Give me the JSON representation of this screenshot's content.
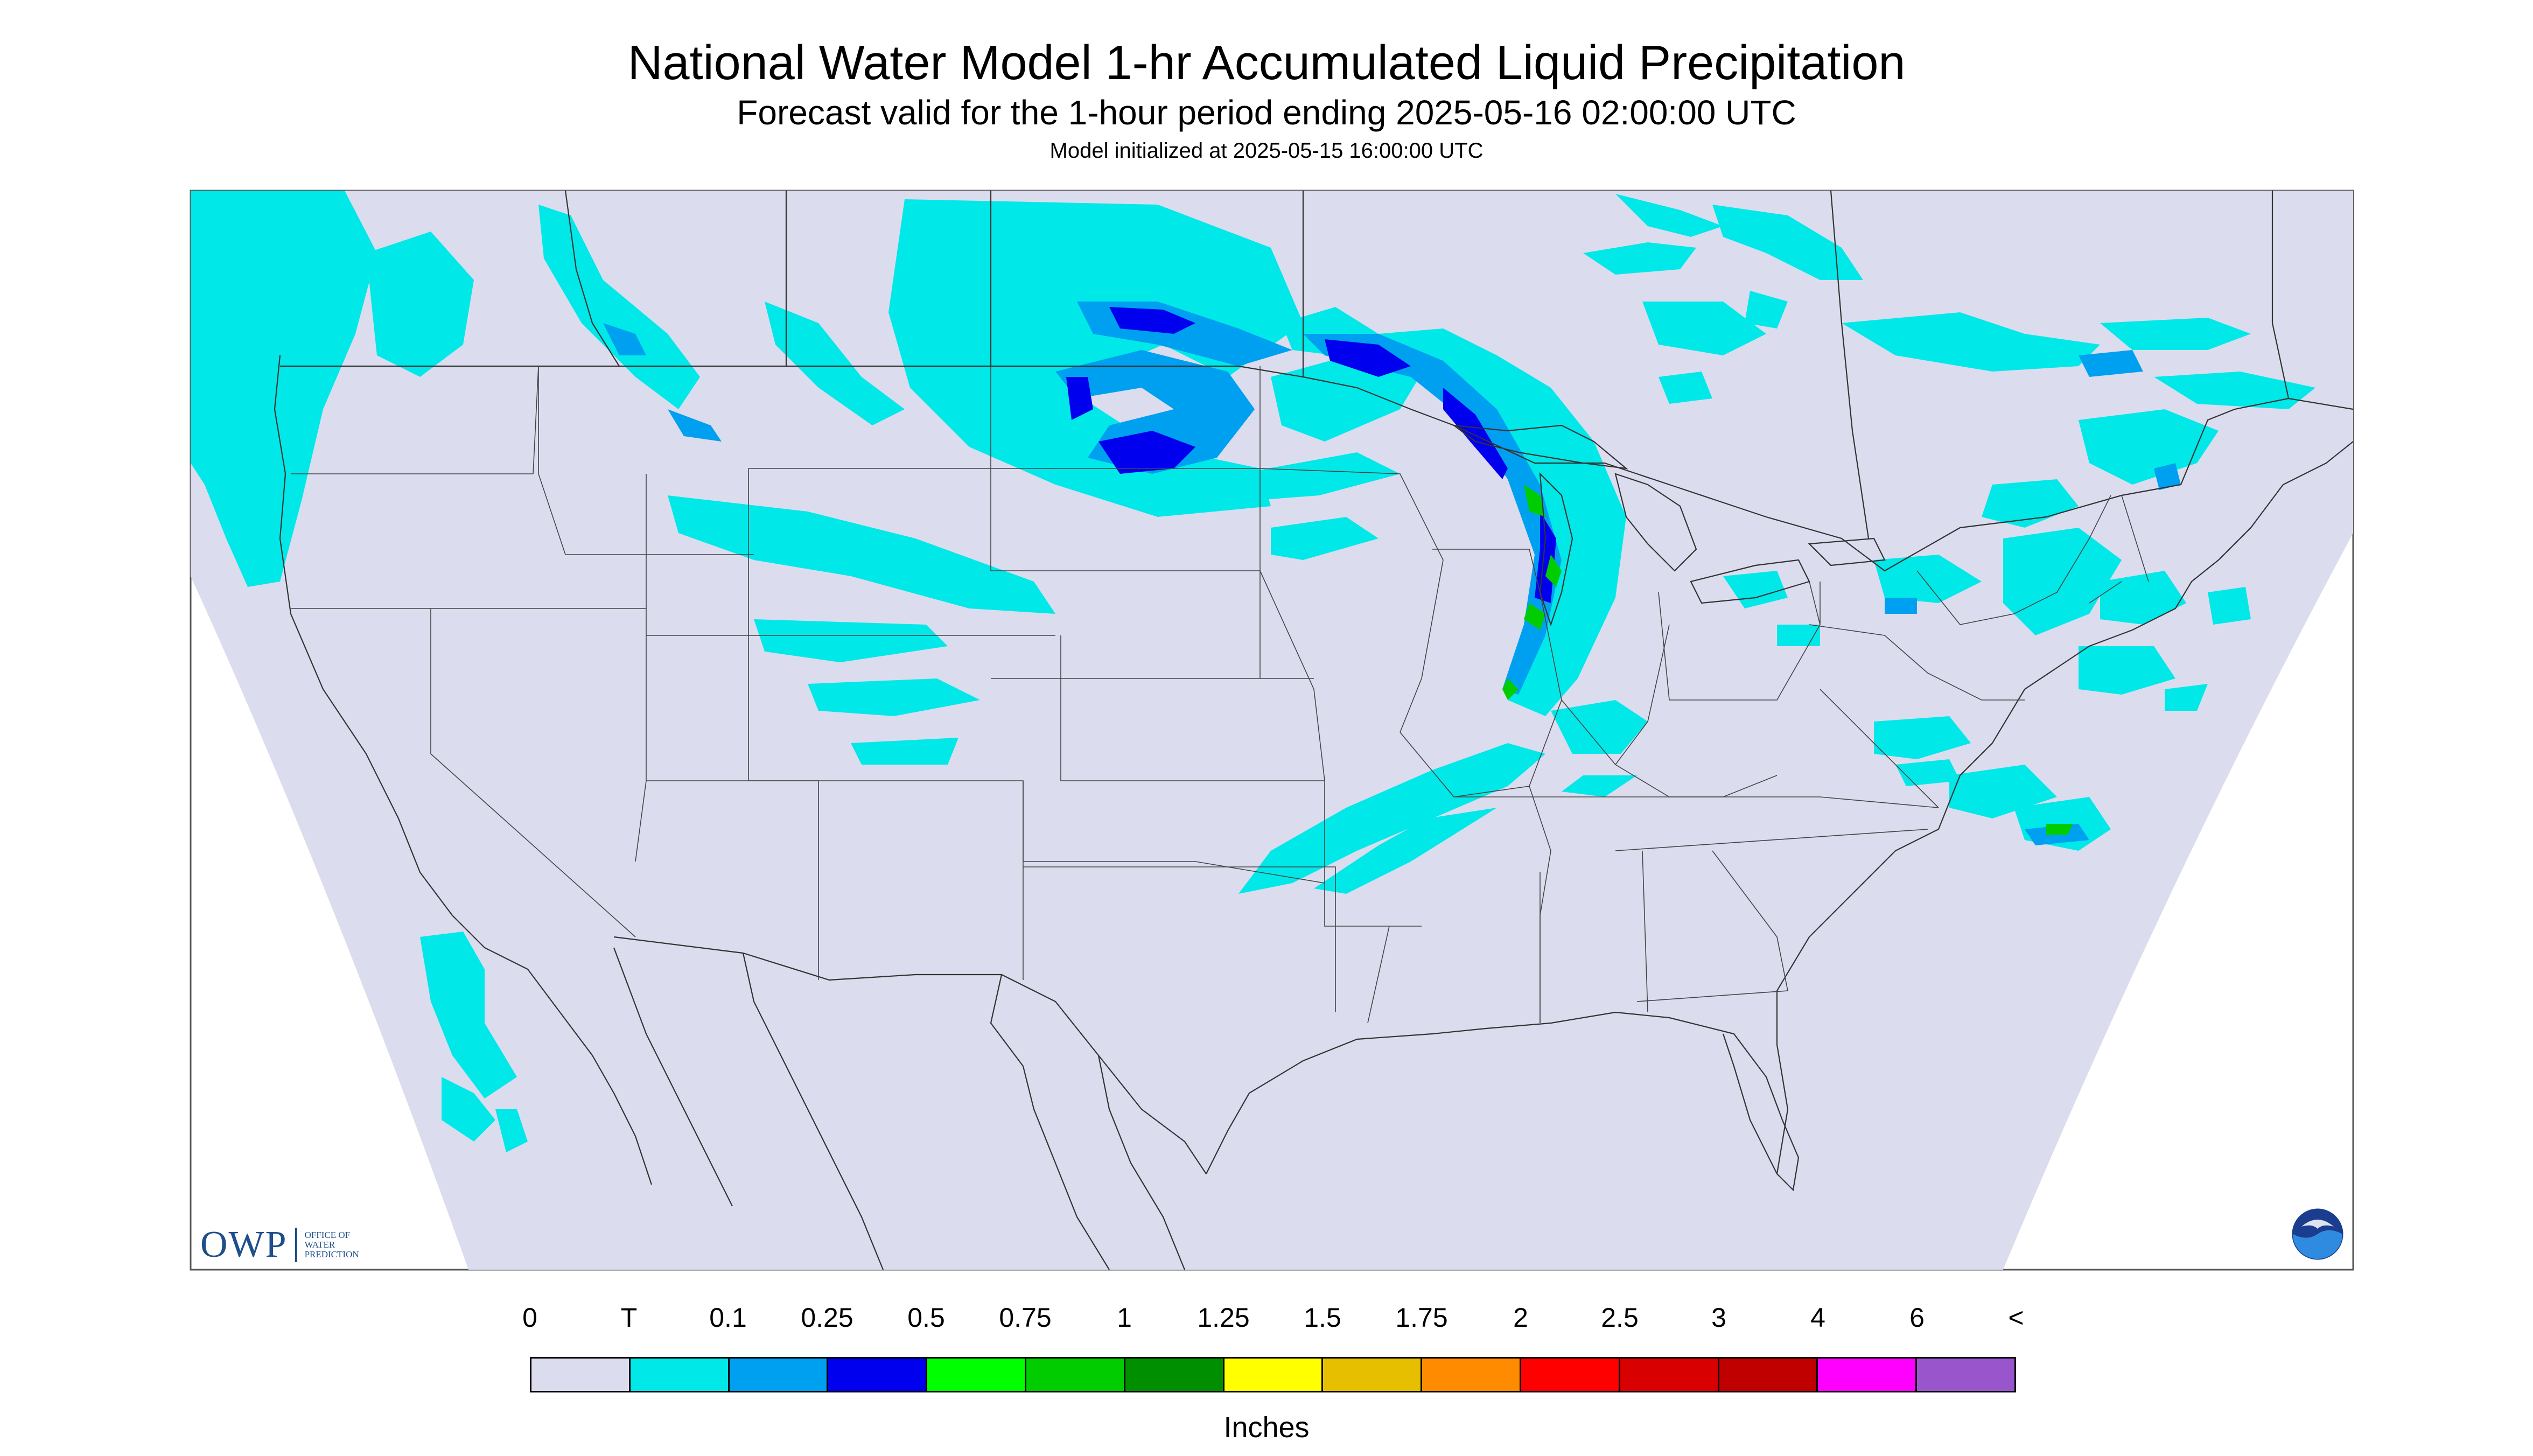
{
  "title": "National Water Model 1-hr Accumulated Liquid Precipitation",
  "subtitle": "Forecast valid for the 1-hour period ending 2025-05-16 02:00:00 UTC",
  "init_line": "Model initialized at 2025-05-15 16:00:00 UTC",
  "logos": {
    "owp_mark": "OWP",
    "owp_text_lines": [
      "OFFICE OF",
      "WATER",
      "PREDICTION"
    ],
    "noaa": "NOAA"
  },
  "legend": {
    "units": "Inches",
    "labels": [
      "0",
      "T",
      "0.1",
      "0.25",
      "0.5",
      "0.75",
      "1",
      "1.25",
      "1.5",
      "1.75",
      "2",
      "2.5",
      "3",
      "4",
      "6",
      "<"
    ],
    "colors": [
      "#dcdcef",
      "#00e8e8",
      "#00a0f0",
      "#0000ee",
      "#00ff00",
      "#00cc00",
      "#008f00",
      "#ffff00",
      "#e6c000",
      "#ff8c00",
      "#ff0000",
      "#d80000",
      "#c00000",
      "#ff00ff",
      "#9955cc"
    ]
  },
  "map": {
    "colors": {
      "background": "#dcdcef",
      "frame": "#555555",
      "borders": "#333333",
      "trace": "#00e8e8",
      "light": "#00a0f0",
      "moderate": "#0000ee",
      "heavy": "#00cc00"
    }
  }
}
